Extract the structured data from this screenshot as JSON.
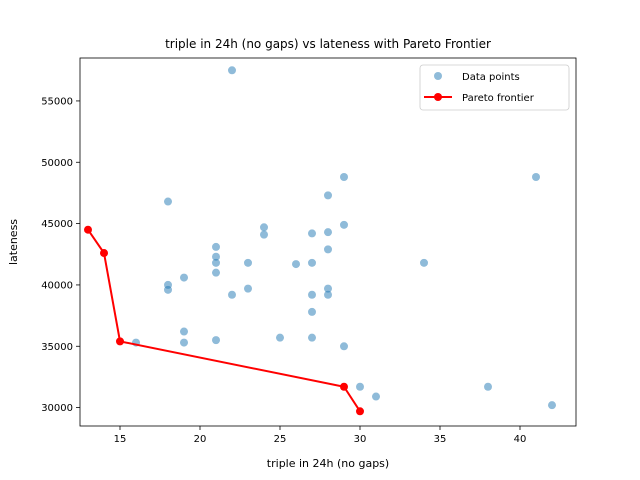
{
  "chart_data": {
    "type": "scatter",
    "title": "triple in 24h (no gaps) vs lateness with Pareto Frontier",
    "xlabel": "triple in 24h (no gaps)",
    "ylabel": "lateness",
    "xlim": [
      12.5,
      43.5
    ],
    "ylim": [
      28500,
      58500
    ],
    "x_ticks": [
      15,
      20,
      25,
      30,
      35,
      40
    ],
    "y_ticks": [
      30000,
      35000,
      40000,
      45000,
      50000,
      55000
    ],
    "legend_position": "top-right",
    "series": [
      {
        "name": "Data points",
        "kind": "scatter",
        "color": "#1f77b4",
        "points": [
          [
            22,
            57500
          ],
          [
            41,
            48800
          ],
          [
            29,
            48800
          ],
          [
            28,
            47300
          ],
          [
            18,
            46800
          ],
          [
            29,
            44900
          ],
          [
            24,
            44700
          ],
          [
            27,
            44200
          ],
          [
            28,
            44300
          ],
          [
            24,
            44100
          ],
          [
            21,
            43100
          ],
          [
            28,
            42900
          ],
          [
            21,
            42300
          ],
          [
            21,
            41800
          ],
          [
            23,
            41800
          ],
          [
            26,
            41700
          ],
          [
            27,
            41800
          ],
          [
            34,
            41800
          ],
          [
            21,
            41000
          ],
          [
            19,
            40600
          ],
          [
            18,
            40000
          ],
          [
            18,
            39600
          ],
          [
            23,
            39700
          ],
          [
            28,
            39700
          ],
          [
            22,
            39200
          ],
          [
            27,
            39200
          ],
          [
            28,
            39200
          ],
          [
            27,
            37800
          ],
          [
            19,
            36200
          ],
          [
            25,
            35700
          ],
          [
            27,
            35700
          ],
          [
            21,
            35500
          ],
          [
            16,
            35300
          ],
          [
            19,
            35300
          ],
          [
            29,
            35000
          ],
          [
            38,
            31700
          ],
          [
            30,
            31700
          ],
          [
            31,
            30900
          ],
          [
            42,
            30200
          ]
        ]
      },
      {
        "name": "Pareto frontier",
        "kind": "line",
        "color": "#ff0000",
        "points": [
          [
            13,
            44500
          ],
          [
            14,
            42600
          ],
          [
            15,
            35400
          ],
          [
            29,
            31700
          ],
          [
            30,
            29700
          ]
        ]
      }
    ]
  }
}
